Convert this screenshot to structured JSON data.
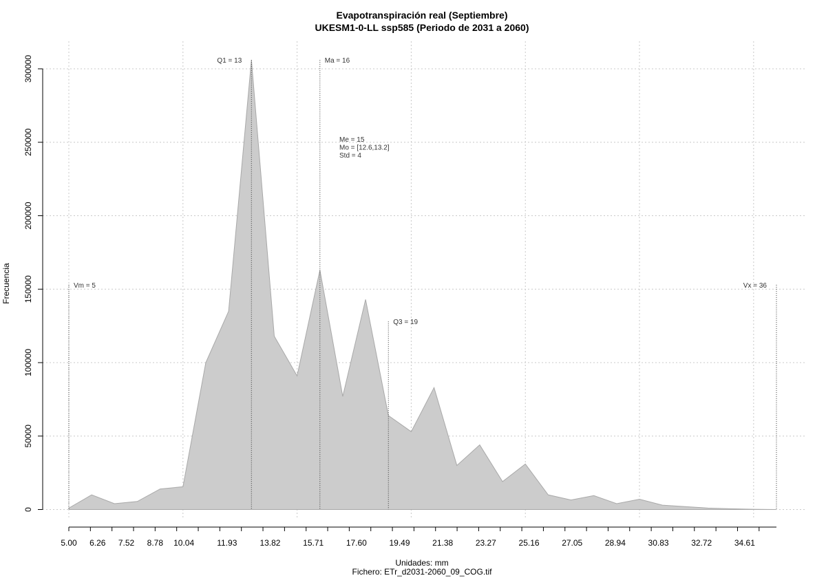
{
  "chart_data": {
    "type": "area",
    "title": "Evapotranspiración real (Septiembre)",
    "subtitle": "UKESM1-0-LL ssp585 (Periodo de 2031 a 2060)",
    "xlabel": "Unidades: mm",
    "ylabel": "Frecuencia",
    "file_caption": "Fichero: ETr_d2031-2060_09_COG.tif",
    "xlim": [
      5.0,
      36.5
    ],
    "ylim": [
      0,
      300000
    ],
    "x_ticks": [
      "5.00",
      "6.26",
      "7.52",
      "8.78",
      "10.04",
      "11.93",
      "13.82",
      "15.71",
      "17.60",
      "19.49",
      "21.38",
      "23.27",
      "25.16",
      "27.05",
      "28.94",
      "30.83",
      "32.72",
      "34.61"
    ],
    "x_tick_values": [
      5.0,
      6.26,
      7.52,
      8.78,
      10.04,
      11.93,
      13.82,
      15.71,
      17.6,
      19.49,
      21.38,
      23.27,
      25.16,
      27.05,
      28.94,
      30.83,
      32.72,
      34.61
    ],
    "y_ticks": [
      "0",
      "50000",
      "100000",
      "150000",
      "200000",
      "250000",
      "300000"
    ],
    "y_tick_values": [
      0,
      50000,
      100000,
      150000,
      200000,
      250000,
      300000
    ],
    "grid": true,
    "fill_color": "#cccccc",
    "series": [
      {
        "x": [
          5.0,
          6.0,
          7.0,
          8.0,
          9.0,
          10.0,
          11.0,
          12.0,
          13.0,
          14.0,
          15.0,
          16.0,
          17.0,
          18.0,
          19.0,
          20.0,
          21.0,
          22.0,
          23.0,
          24.0,
          25.0,
          26.0,
          27.0,
          28.0,
          29.0,
          30.0,
          31.0,
          32.0,
          33.0,
          34.0,
          35.0,
          36.0
        ],
        "values": [
          1000,
          10000,
          4000,
          5500,
          14000,
          15500,
          100000,
          135000,
          306000,
          118000,
          91000,
          163000,
          77000,
          143000,
          64000,
          53000,
          83000,
          30000,
          44000,
          19000,
          31000,
          10000,
          6500,
          9500,
          4000,
          7000,
          3000,
          2000,
          1000,
          500,
          200,
          0
        ]
      }
    ],
    "markers": [
      {
        "label": "Vm = 5",
        "x": 5.0,
        "height": 153000,
        "label_side": "right"
      },
      {
        "label": "Q1 = 13",
        "x": 13.0,
        "height": 306000,
        "label_side": "left"
      },
      {
        "label": "Ma = 16",
        "x": 16.0,
        "height": 306000,
        "label_side": "right"
      },
      {
        "label": "Q3 = 19",
        "x": 19.0,
        "height": 128000,
        "label_side": "right"
      },
      {
        "label": "Vx = 36",
        "x": 36.0,
        "height": 153000,
        "label_side": "left"
      }
    ],
    "stats": [
      "Me = 15",
      "Mo = [12.6,13.2]",
      "Std = 4"
    ]
  }
}
